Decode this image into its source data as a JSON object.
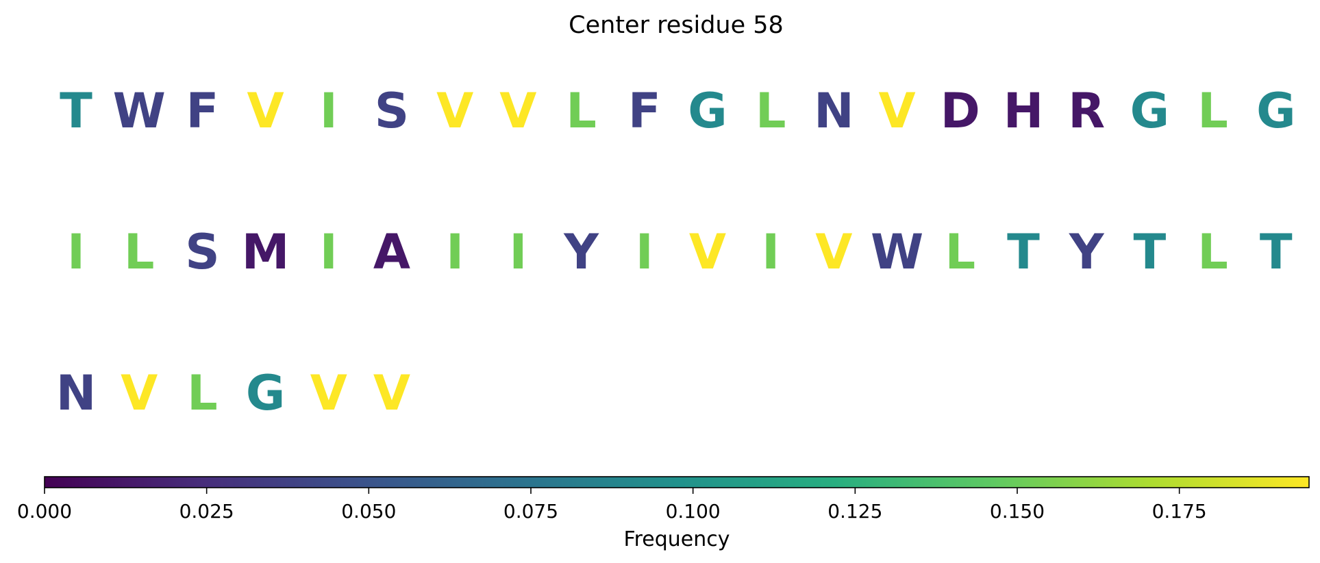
{
  "chart_data": {
    "type": "sequence-colored-letters",
    "title": "Center residue 58",
    "residues": [
      {
        "letter": "T",
        "value": 0.091
      },
      {
        "letter": "W",
        "value": 0.038
      },
      {
        "letter": "F",
        "value": 0.038
      },
      {
        "letter": "V",
        "value": 0.195
      },
      {
        "letter": "I",
        "value": 0.152
      },
      {
        "letter": "S",
        "value": 0.038
      },
      {
        "letter": "V",
        "value": 0.195
      },
      {
        "letter": "V",
        "value": 0.195
      },
      {
        "letter": "L",
        "value": 0.152
      },
      {
        "letter": "F",
        "value": 0.038
      },
      {
        "letter": "G",
        "value": 0.091
      },
      {
        "letter": "L",
        "value": 0.152
      },
      {
        "letter": "N",
        "value": 0.038
      },
      {
        "letter": "V",
        "value": 0.195
      },
      {
        "letter": "D",
        "value": 0.012
      },
      {
        "letter": "H",
        "value": 0.012
      },
      {
        "letter": "R",
        "value": 0.012
      },
      {
        "letter": "G",
        "value": 0.091
      },
      {
        "letter": "L",
        "value": 0.152
      },
      {
        "letter": "G",
        "value": 0.091
      },
      {
        "letter": "I",
        "value": 0.152
      },
      {
        "letter": "L",
        "value": 0.152
      },
      {
        "letter": "S",
        "value": 0.038
      },
      {
        "letter": "M",
        "value": 0.012
      },
      {
        "letter": "I",
        "value": 0.152
      },
      {
        "letter": "A",
        "value": 0.012
      },
      {
        "letter": "I",
        "value": 0.152
      },
      {
        "letter": "I",
        "value": 0.152
      },
      {
        "letter": "Y",
        "value": 0.038
      },
      {
        "letter": "I",
        "value": 0.152
      },
      {
        "letter": "V",
        "value": 0.195
      },
      {
        "letter": "I",
        "value": 0.152
      },
      {
        "letter": "V",
        "value": 0.195
      },
      {
        "letter": "W",
        "value": 0.038
      },
      {
        "letter": "L",
        "value": 0.152
      },
      {
        "letter": "T",
        "value": 0.091
      },
      {
        "letter": "Y",
        "value": 0.038
      },
      {
        "letter": "T",
        "value": 0.091
      },
      {
        "letter": "L",
        "value": 0.152
      },
      {
        "letter": "T",
        "value": 0.091
      },
      {
        "letter": "N",
        "value": 0.038
      },
      {
        "letter": "V",
        "value": 0.195
      },
      {
        "letter": "L",
        "value": 0.152
      },
      {
        "letter": "G",
        "value": 0.091
      },
      {
        "letter": "V",
        "value": 0.195
      },
      {
        "letter": "V",
        "value": 0.195
      }
    ],
    "residues_per_row": 20,
    "colorbar": {
      "label": "Frequency",
      "colormap": "viridis",
      "range": [
        0,
        0.195
      ],
      "ticks": [
        "0.000",
        "0.025",
        "0.050",
        "0.075",
        "0.100",
        "0.125",
        "0.150",
        "0.175"
      ]
    }
  }
}
